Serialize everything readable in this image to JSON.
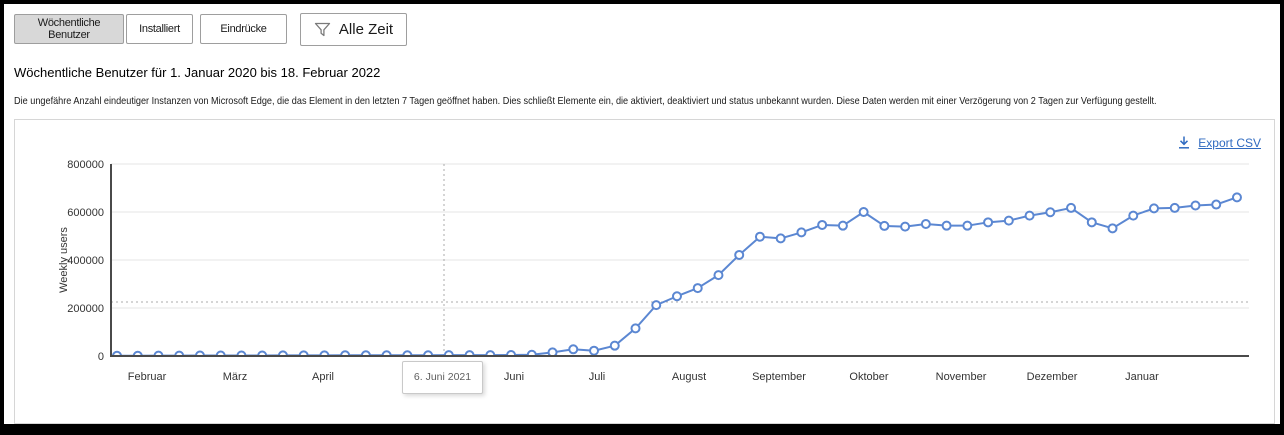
{
  "colors": {
    "line": "#5b87d2",
    "marker_fill": "#ffffff",
    "link": "#2f6ac0",
    "grid": "#e4e4e4",
    "axis": "#4a4a4a",
    "dotted": "#ababab",
    "tick_text": "#333333",
    "selected_button_bg": "#d8d8d8",
    "button_border": "#9e9e9e"
  },
  "toolbar": {
    "buttons": [
      {
        "label": "Wöchentliche Benutzer",
        "selected": true
      },
      {
        "label": "Installiert",
        "selected": false
      },
      {
        "label": "Eindrücke",
        "selected": false
      }
    ],
    "filter_button": {
      "label": "Alle Zeit",
      "icon": "filter-funnel-icon"
    }
  },
  "header": {
    "title": "Wöchentliche Benutzer für 1. Januar 2020 bis 18. Februar 2022",
    "description": "Die ungefähre Anzahl eindeutiger Instanzen von Microsoft Edge, die das Element in den letzten 7 Tagen geöffnet haben. Dies schließt Elemente ein, die aktiviert, deaktiviert und status unbekannt wurden. Diese Daten werden mit einer Verzögerung von 2 Tagen zur Verfügung gestellt."
  },
  "chart_panel": {
    "export_link": {
      "label": "Export CSV",
      "icon": "download-icon"
    }
  },
  "chart_data": {
    "type": "line",
    "title": "",
    "xlabel": "",
    "ylabel": "Weekly users",
    "ylim": [
      0,
      800000
    ],
    "y_ticks": [
      0,
      200000,
      400000,
      600000,
      800000
    ],
    "x_tick_labels": [
      "Februar",
      "März",
      "April",
      "Juni",
      "Juli",
      "August",
      "September",
      "Oktober",
      "November",
      "Dezember",
      "Januar"
    ],
    "hover_tooltip": "6. Juni 2021",
    "reference_line_y": 225000,
    "grid": true,
    "legend_position": "none",
    "marker": "open-circle",
    "series": [
      {
        "name": "Weekly users",
        "values": [
          1000,
          1000,
          1500,
          1500,
          2000,
          2000,
          2000,
          2000,
          2500,
          2500,
          2500,
          3000,
          3000,
          3000,
          3000,
          3000,
          3500,
          3500,
          3500,
          4000,
          5000,
          15000,
          28000,
          22000,
          43000,
          115000,
          212000,
          249000,
          283000,
          337000,
          421000,
          497000,
          490000,
          515000,
          546000,
          543000,
          600000,
          542000,
          539000,
          550000,
          543000,
          543000,
          557000,
          564000,
          585000,
          599000,
          617000,
          557000,
          532000,
          585000,
          615000,
          617000,
          627000,
          631000,
          661000
        ]
      }
    ]
  }
}
